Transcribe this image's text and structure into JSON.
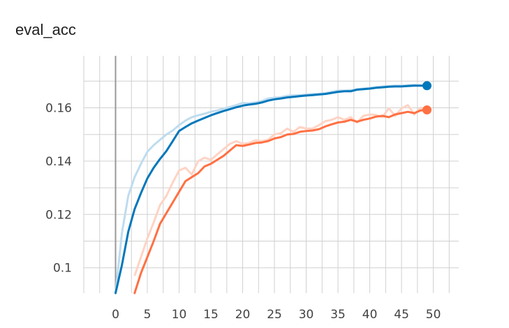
{
  "chart_data": {
    "type": "line",
    "title": "eval_acc",
    "xlabel": "",
    "ylabel": "",
    "xlim": [
      -5,
      54
    ],
    "ylim": [
      0.0905,
      0.1795
    ],
    "x_ticks": [
      0,
      5,
      10,
      15,
      20,
      25,
      30,
      35,
      40,
      45,
      50
    ],
    "x_tick_labels": [
      "0",
      "5",
      "10",
      "15",
      "20",
      "25",
      "30",
      "35",
      "40",
      "45",
      "50"
    ],
    "y_ticks": [
      0.1,
      0.12,
      0.14,
      0.16
    ],
    "y_tick_labels": [
      "0.1",
      "0.12",
      "0.14",
      "0.16"
    ],
    "grid": true,
    "colors": {
      "blue": "#0077bb",
      "blue_raw": "#bfdcef",
      "orange": "#ff7043",
      "orange_raw": "#ffd3c4",
      "grid": "#d0d0d0",
      "zero_line": "#999999"
    },
    "series": [
      {
        "color": "#0077bb",
        "raw_color": "#bfdcef",
        "x": [
          0,
          1,
          2,
          3,
          4,
          5,
          6,
          7,
          8,
          9,
          10,
          11,
          12,
          13,
          14,
          15,
          16,
          17,
          18,
          19,
          20,
          21,
          22,
          23,
          24,
          25,
          26,
          27,
          28,
          29,
          30,
          31,
          32,
          33,
          34,
          35,
          36,
          37,
          38,
          39,
          40,
          41,
          42,
          43,
          44,
          45,
          46,
          47,
          48,
          49
        ],
        "values": [
          0.084,
          0.101,
          0.1135,
          0.122,
          0.128,
          0.1335,
          0.1375,
          0.1408,
          0.1438,
          0.1475,
          0.1513,
          0.1528,
          0.1542,
          0.1552,
          0.1562,
          0.1572,
          0.158,
          0.1588,
          0.1595,
          0.1602,
          0.1608,
          0.1612,
          0.1615,
          0.162,
          0.1627,
          0.1632,
          0.1635,
          0.1639,
          0.1641,
          0.1644,
          0.1646,
          0.1648,
          0.165,
          0.1652,
          0.1656,
          0.166,
          0.1662,
          0.1662,
          0.1668,
          0.167,
          0.1672,
          0.1675,
          0.1677,
          0.1679,
          0.168,
          0.168,
          0.1682,
          0.1683,
          0.1683,
          0.1683
        ],
        "raw_values": [
          0.088,
          0.113,
          0.127,
          0.134,
          0.139,
          0.1435,
          0.146,
          0.148,
          0.15,
          0.1515,
          0.1535,
          0.1552,
          0.1565,
          0.1572,
          0.1578,
          0.1585,
          0.159,
          0.1597,
          0.1603,
          0.161,
          0.1618,
          0.1617,
          0.162,
          0.1625,
          0.1635,
          0.1638,
          0.164,
          0.1645,
          0.1647,
          0.1647,
          0.165,
          0.1652,
          0.1653,
          0.1655,
          0.166,
          0.1665,
          0.1664,
          0.1666,
          0.167,
          0.1672,
          0.1675,
          0.1678,
          0.168,
          0.1682,
          0.1683,
          0.1683,
          0.1685,
          0.1686,
          0.1684,
          0.1683
        ]
      },
      {
        "color": "#ff7043",
        "raw_color": "#ffd3c4",
        "x": [
          3,
          4,
          5,
          6,
          7,
          8,
          9,
          10,
          11,
          12,
          13,
          14,
          15,
          16,
          17,
          18,
          19,
          20,
          21,
          22,
          23,
          24,
          25,
          26,
          27,
          28,
          29,
          30,
          31,
          32,
          33,
          34,
          35,
          36,
          37,
          38,
          39,
          40,
          41,
          42,
          43,
          44,
          45,
          46,
          47,
          48,
          49
        ],
        "values": [
          0.0905,
          0.098,
          0.104,
          0.11,
          0.1165,
          0.1205,
          0.1245,
          0.1285,
          0.1325,
          0.134,
          0.1355,
          0.138,
          0.139,
          0.1405,
          0.142,
          0.144,
          0.146,
          0.1457,
          0.1462,
          0.1468,
          0.147,
          0.1475,
          0.1485,
          0.149,
          0.15,
          0.1502,
          0.151,
          0.1513,
          0.1515,
          0.152,
          0.153,
          0.1538,
          0.1545,
          0.1548,
          0.1555,
          0.1548,
          0.1555,
          0.156,
          0.1567,
          0.157,
          0.1565,
          0.1575,
          0.158,
          0.1585,
          0.158,
          0.159,
          0.1592
        ],
        "raw_values": [
          0.097,
          0.104,
          0.111,
          0.117,
          0.1235,
          0.127,
          0.132,
          0.1365,
          0.1375,
          0.135,
          0.14,
          0.1413,
          0.1405,
          0.1425,
          0.1445,
          0.1465,
          0.1475,
          0.1465,
          0.1468,
          0.1478,
          0.1475,
          0.148,
          0.15,
          0.1505,
          0.1522,
          0.151,
          0.1528,
          0.1522,
          0.1522,
          0.1535,
          0.155,
          0.1555,
          0.1565,
          0.1555,
          0.1565,
          0.1545,
          0.157,
          0.1575,
          0.1573,
          0.1565,
          0.1598,
          0.157,
          0.1598,
          0.161,
          0.1575,
          0.16,
          0.1595
        ]
      }
    ]
  }
}
